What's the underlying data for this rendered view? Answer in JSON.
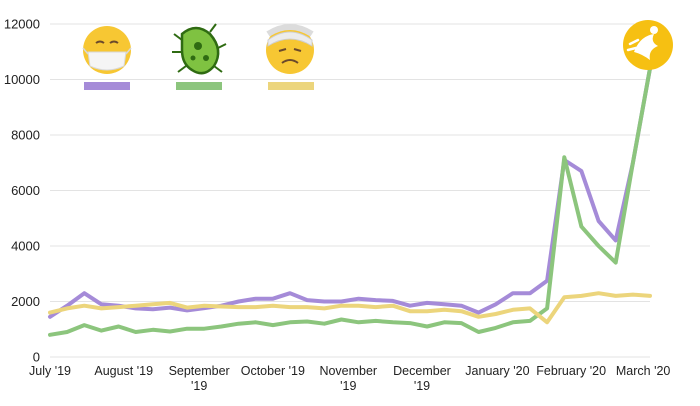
{
  "chart_data": {
    "type": "line",
    "title": "",
    "xlabel": "",
    "ylabel": "",
    "ylim": [
      0,
      12000
    ],
    "yticks": [
      0,
      2000,
      4000,
      6000,
      8000,
      10000,
      12000
    ],
    "grid": "horizontal",
    "legend": "top-left, emoji icons with colour swatches",
    "x_tick_labels": [
      {
        "lines": [
          "July '19"
        ],
        "week": 0
      },
      {
        "lines": [
          "August '19"
        ],
        "week": 4.3
      },
      {
        "lines": [
          "September",
          "'19"
        ],
        "week": 8.7
      },
      {
        "lines": [
          "October '19"
        ],
        "week": 13
      },
      {
        "lines": [
          "November",
          "'19"
        ],
        "week": 17.4
      },
      {
        "lines": [
          "December",
          "'19"
        ],
        "week": 21.7
      },
      {
        "lines": [
          "January '20"
        ],
        "week": 26.1
      },
      {
        "lines": [
          "February '20"
        ],
        "week": 30.4
      },
      {
        "lines": [
          "March '20"
        ],
        "week": 34.6
      }
    ],
    "series": [
      {
        "icon": "face-with-medical-mask-icon",
        "color": "#a58bd8",
        "values": [
          1450,
          1850,
          2300,
          1900,
          1850,
          1750,
          1720,
          1780,
          1680,
          1760,
          1850,
          2000,
          2100,
          2100,
          2300,
          2050,
          2000,
          2000,
          2100,
          2050,
          2020,
          1850,
          1950,
          1900,
          1850,
          1600,
          1900,
          2300,
          2300,
          2750,
          7100,
          6700,
          4900,
          4200,
          7000,
          10400
        ]
      },
      {
        "icon": "microbe-icon",
        "color": "#8cc57d",
        "values": [
          800,
          900,
          1150,
          950,
          1100,
          900,
          980,
          920,
          1020,
          1020,
          1100,
          1200,
          1250,
          1150,
          1250,
          1280,
          1200,
          1350,
          1250,
          1300,
          1250,
          1220,
          1100,
          1250,
          1220,
          900,
          1050,
          1250,
          1300,
          1750,
          7200,
          4700,
          4000,
          3400,
          7000,
          10400
        ]
      },
      {
        "icon": "face-with-head-bandage-icon",
        "color": "#ecd57c",
        "values": [
          1600,
          1750,
          1850,
          1750,
          1800,
          1850,
          1900,
          1950,
          1780,
          1850,
          1820,
          1800,
          1800,
          1850,
          1800,
          1800,
          1750,
          1850,
          1850,
          1800,
          1850,
          1650,
          1650,
          1700,
          1650,
          1450,
          1550,
          1700,
          1750,
          1250,
          2150,
          2200,
          2300,
          2200,
          2250,
          2200
        ]
      }
    ],
    "corner_logo": "yellow-circle-bird-logo-icon"
  }
}
